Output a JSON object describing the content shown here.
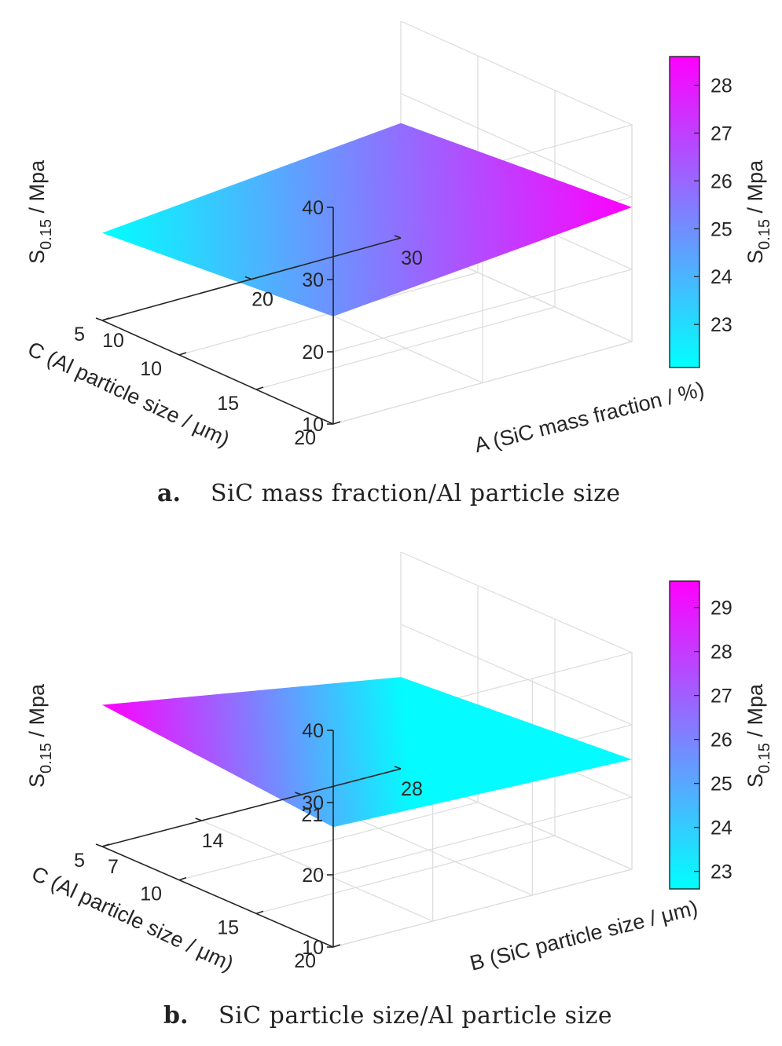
{
  "chart_data": [
    {
      "type": "surface",
      "caption_letter": "a.",
      "caption": "SiC mass fraction/Al particle size",
      "x_axis": {
        "label": "A (SiC mass fraction / %)",
        "ticks": [
          "10",
          "20",
          "30"
        ],
        "range": [
          10,
          30
        ]
      },
      "y_axis": {
        "label": "C (Al particle size / μm)",
        "ticks": [
          "5",
          "10",
          "15",
          "20"
        ],
        "range": [
          5,
          20
        ]
      },
      "z_axis": {
        "label": "S0.15 / Mpa",
        "label_main": "S",
        "label_sub": "0.15",
        "label_suffix": " / Mpa",
        "ticks": [
          "10",
          "20",
          "30",
          "40"
        ],
        "range": [
          10,
          40
        ]
      },
      "surface": [
        {
          "x": 10,
          "y": 5,
          "z": 22.1
        },
        {
          "x": 30,
          "y": 5,
          "z": 25.9
        },
        {
          "x": 30,
          "y": 20,
          "z": 28.6
        },
        {
          "x": 10,
          "y": 20,
          "z": 24.9
        }
      ],
      "colorbar": {
        "label_main": "S",
        "label_sub": "0.15",
        "label_suffix": " / Mpa",
        "range": [
          22.1,
          28.6
        ],
        "ticks": [
          "23",
          "24",
          "25",
          "26",
          "27",
          "28"
        ],
        "colors": [
          "#00ffff",
          "#ff00ff"
        ]
      },
      "grid": true
    },
    {
      "type": "surface",
      "caption_letter": "b.",
      "caption": "SiC particle size/Al particle size",
      "x_axis": {
        "label": "B (SiC particle size / μm)",
        "ticks": [
          "7",
          "14",
          "21",
          "28"
        ],
        "range": [
          7,
          28
        ]
      },
      "y_axis": {
        "label": "C (Al particle size / μm)",
        "ticks": [
          "5",
          "10",
          "15",
          "20"
        ],
        "range": [
          5,
          20
        ]
      },
      "z_axis": {
        "label": "S0.15 / Mpa",
        "label_main": "S",
        "label_sub": "0.15",
        "label_suffix": " / Mpa",
        "ticks": [
          "10",
          "20",
          "30",
          "40"
        ],
        "range": [
          10,
          40
        ]
      },
      "surface": [
        {
          "x": 7,
          "y": 5,
          "z": 29.6
        },
        {
          "x": 28,
          "y": 5,
          "z": 22.7
        },
        {
          "x": 28,
          "y": 20,
          "z": 25.2
        },
        {
          "x": 7,
          "y": 20,
          "z": 26.6
        }
      ],
      "colorbar": {
        "label_main": "S",
        "label_sub": "0.15",
        "label_suffix": " / Mpa",
        "range": [
          22.6,
          29.6
        ],
        "ticks": [
          "23",
          "24",
          "25",
          "26",
          "27",
          "28",
          "29"
        ],
        "colors": [
          "#00ffff",
          "#ff00ff"
        ]
      },
      "grid": true
    }
  ]
}
